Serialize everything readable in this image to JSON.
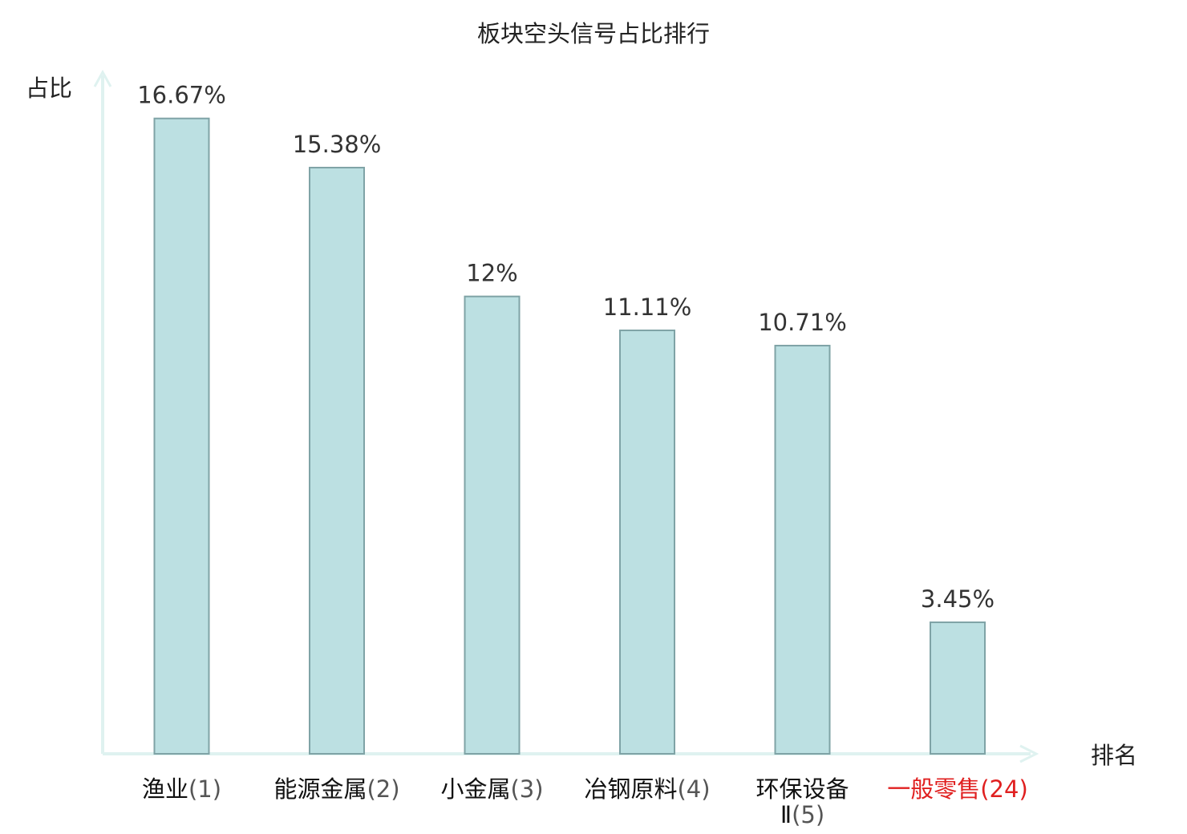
{
  "chart_data": {
    "type": "bar",
    "title": "板块空头信号占比排行",
    "ylabel": "占比",
    "xlabel": "排名",
    "ylim": [
      0,
      17.8
    ],
    "grid": false,
    "categories": [
      {
        "name": "渔业",
        "rank": "(1)",
        "value": 16.67,
        "label": "16.67%",
        "highlight": false
      },
      {
        "name": "能源金属",
        "rank": "(2)",
        "value": 15.38,
        "label": "15.38%",
        "highlight": false
      },
      {
        "name": "小金属",
        "rank": "(3)",
        "value": 12.0,
        "label": "12%",
        "highlight": false
      },
      {
        "name": "冶钢原料",
        "rank": "(4)",
        "value": 11.11,
        "label": "11.11%",
        "highlight": false
      },
      {
        "name": "环保设备",
        "name_line2": "Ⅱ",
        "rank": "(5)",
        "value": 10.71,
        "label": "10.71%",
        "highlight": false
      },
      {
        "name": "一般零售",
        "rank": "(24)",
        "value": 3.45,
        "label": "3.45%",
        "highlight": true
      }
    ],
    "colors": {
      "bar_fill": "#bce0e2",
      "bar_stroke": "#7fa3a6",
      "axis": "#dff2f0",
      "highlight": "#e02020"
    }
  }
}
